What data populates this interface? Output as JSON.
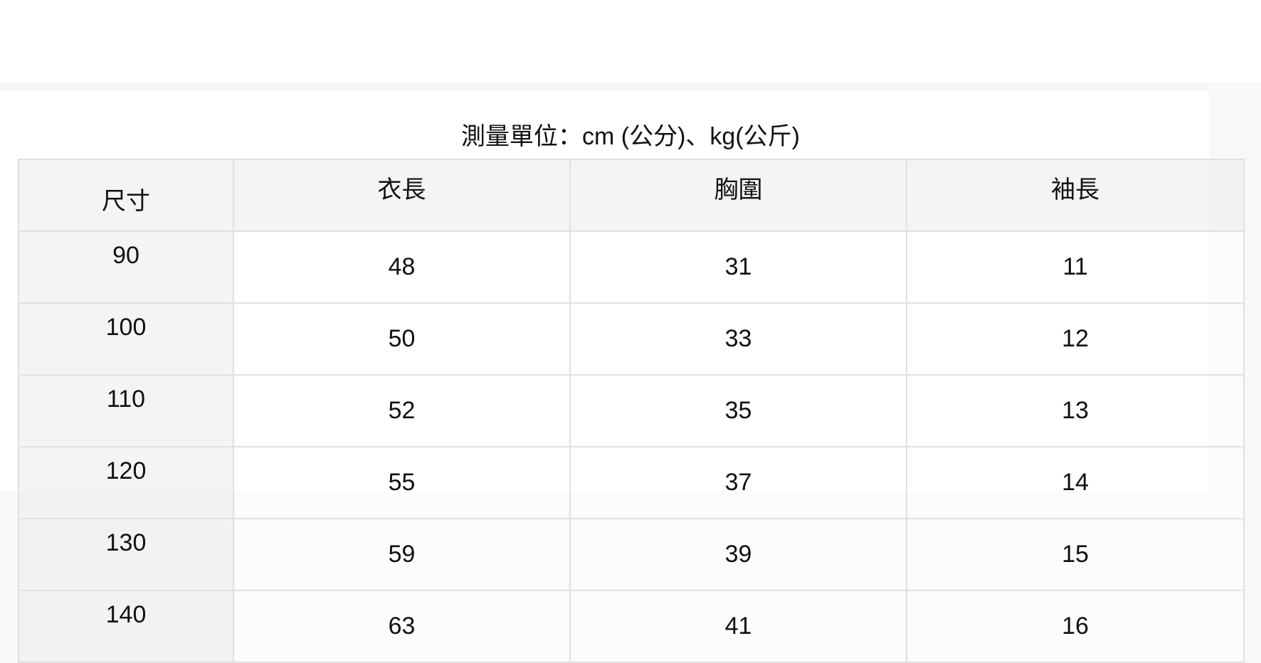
{
  "caption": "測量單位：cm (公分)、kg(公斤)",
  "table": {
    "headers": [
      "尺寸",
      "衣長",
      "胸圍",
      "袖長"
    ],
    "rows": [
      [
        "90",
        "48",
        "31",
        "11"
      ],
      [
        "100",
        "50",
        "33",
        "12"
      ],
      [
        "110",
        "52",
        "35",
        "13"
      ],
      [
        "120",
        "55",
        "37",
        "14"
      ],
      [
        "130",
        "59",
        "39",
        "15"
      ],
      [
        "140",
        "63",
        "41",
        "16"
      ]
    ]
  }
}
